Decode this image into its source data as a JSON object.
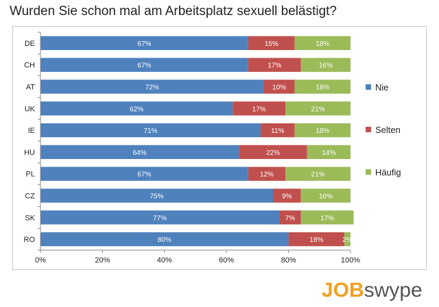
{
  "title": "Wurden Sie schon mal am Arbeitsplatz sexuell belästigt?",
  "logo": {
    "text": "JOBswype",
    "prefix": "JOB",
    "suffix": "swype",
    "brand_color": "#f0a020",
    "text_color": "#555555"
  },
  "chart_data": {
    "type": "bar",
    "orientation": "horizontal",
    "stacked": true,
    "percent_stacked": true,
    "title": "Wurden Sie schon mal am Arbeitsplatz sexuell belästigt?",
    "categories": [
      "DE",
      "CH",
      "AT",
      "UK",
      "IE",
      "HU",
      "PL",
      "CZ",
      "SK",
      "RO"
    ],
    "series": [
      {
        "name": "Nie",
        "color": "#4f81bd",
        "values": [
          67,
          67,
          72,
          62,
          71,
          64,
          67,
          75,
          77,
          80
        ],
        "labels": [
          "67%",
          "67%",
          "72%",
          "62%",
          "71%",
          "64%",
          "67%",
          "75%",
          "77%",
          "80%"
        ]
      },
      {
        "name": "Selten",
        "color": "#c0504d",
        "values": [
          15,
          17,
          10,
          17,
          11,
          22,
          12,
          9,
          7,
          18
        ],
        "labels": [
          "15%",
          "17%",
          "10%",
          "17%",
          "11%",
          "22%",
          "12%",
          "9%",
          "7%",
          "18%"
        ]
      },
      {
        "name": "Häufig",
        "color": "#9bbb59",
        "values": [
          18,
          16,
          18,
          21,
          18,
          14,
          21,
          16,
          17,
          2
        ],
        "labels": [
          "18%",
          "16%",
          "18%",
          "21%",
          "18%",
          "14%",
          "21%",
          "16%",
          "17%",
          "2%"
        ]
      }
    ],
    "xlim": [
      0,
      100
    ],
    "xticks": [
      0,
      20,
      40,
      60,
      80,
      100
    ],
    "xtick_labels": [
      "0%",
      "20%",
      "40%",
      "60%",
      "80%",
      "100%"
    ],
    "grid": false,
    "legend_position": "right"
  }
}
